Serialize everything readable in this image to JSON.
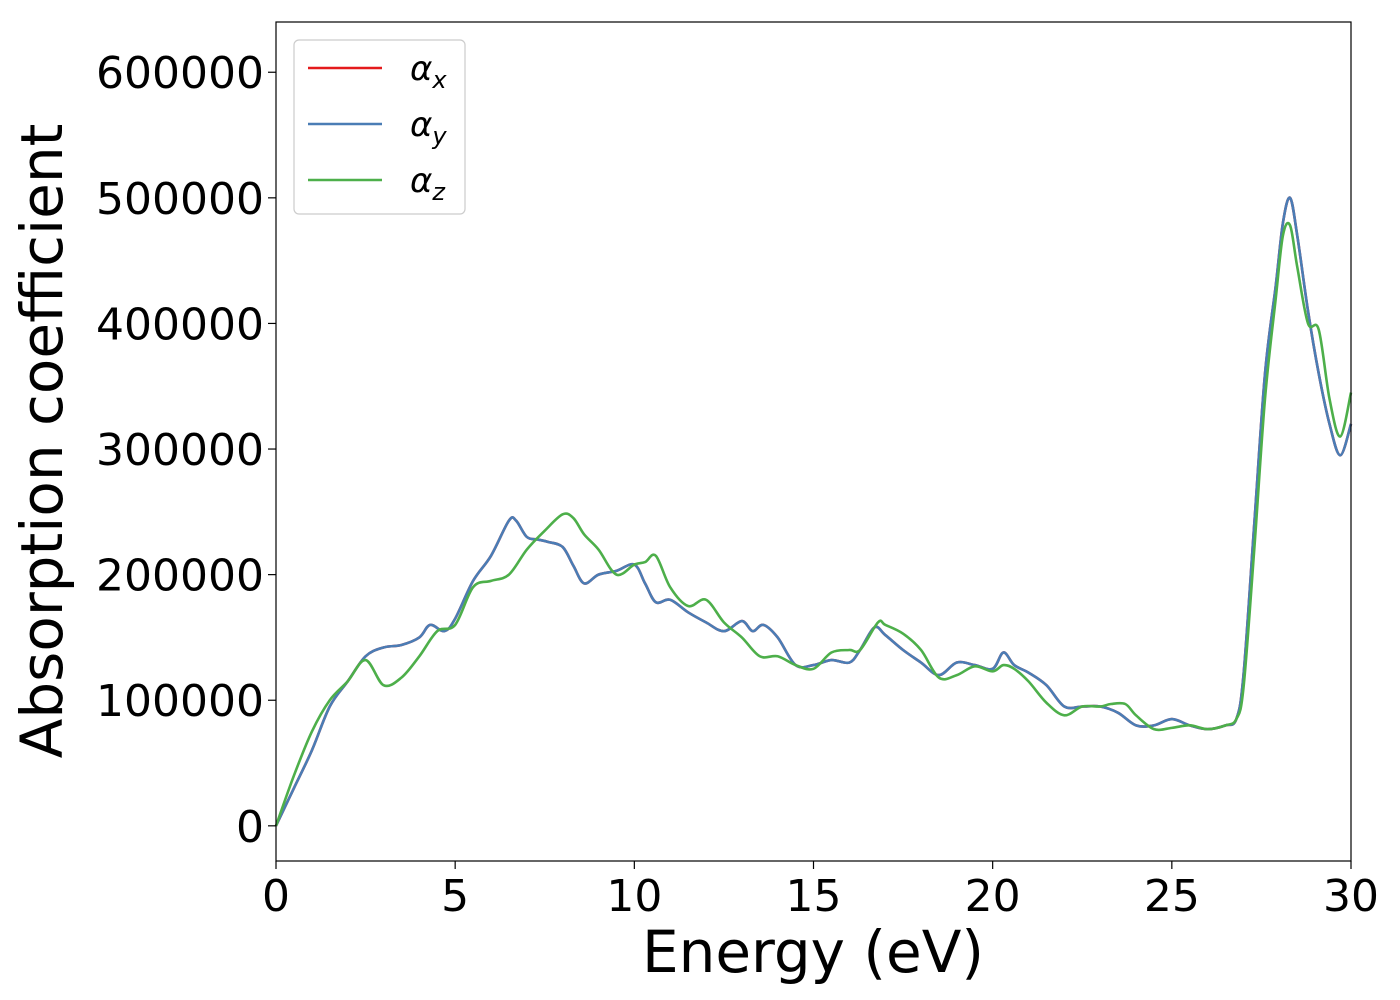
{
  "chart_data": {
    "type": "line",
    "title": "",
    "xlabel": "Energy (eV)",
    "ylabel": "Absorption coefficient",
    "xlim": [
      0,
      30
    ],
    "ylim": [
      -28000,
      640000
    ],
    "x_ticks": [
      0,
      5,
      10,
      15,
      20,
      25,
      30
    ],
    "y_ticks": [
      0,
      100000,
      200000,
      300000,
      400000,
      500000,
      600000
    ],
    "grid": false,
    "legend_position": "top-left",
    "series": [
      {
        "name": "αx",
        "legend_base": "α",
        "legend_sub": "x",
        "color": "#e41a1c",
        "x": [
          0,
          0.5,
          1,
          1.5,
          2,
          2.5,
          3,
          3.5,
          4,
          4.3,
          4.7,
          5,
          5.5,
          6,
          6.5,
          6.7,
          7,
          7.3,
          7.6,
          8,
          8.3,
          8.6,
          9,
          9.5,
          10,
          10.3,
          10.6,
          11,
          11.5,
          12,
          12.5,
          13,
          13.3,
          13.6,
          14,
          14.5,
          15,
          15.5,
          16,
          16.3,
          16.7,
          17,
          17.5,
          18,
          18.5,
          19,
          19.5,
          20,
          20.3,
          20.6,
          21,
          21.5,
          22,
          22.5,
          23,
          23.5,
          24,
          24.5,
          25,
          25.5,
          26,
          26.5,
          26.8,
          27,
          27.3,
          27.6,
          27.9,
          28.1,
          28.3,
          28.5,
          28.8,
          29.1,
          29.4,
          29.7,
          30
        ],
        "y": [
          0,
          30000,
          60000,
          95000,
          115000,
          135000,
          142000,
          144000,
          150000,
          160000,
          155000,
          165000,
          195000,
          215000,
          243000,
          243000,
          230000,
          228000,
          226000,
          222000,
          207000,
          193000,
          200000,
          203000,
          208000,
          193000,
          178000,
          180000,
          170000,
          162000,
          155000,
          163000,
          155000,
          160000,
          150000,
          128000,
          128000,
          132000,
          130000,
          140000,
          158000,
          152000,
          140000,
          130000,
          120000,
          130000,
          128000,
          125000,
          138000,
          128000,
          122000,
          112000,
          95000,
          95000,
          95000,
          90000,
          80000,
          80000,
          85000,
          80000,
          77000,
          80000,
          85000,
          120000,
          240000,
          360000,
          430000,
          480000,
          500000,
          470000,
          410000,
          360000,
          320000,
          295000,
          320000
        ]
      },
      {
        "name": "αy",
        "legend_base": "α",
        "legend_sub": "y",
        "color": "#4a7db5",
        "x": [
          0,
          0.5,
          1,
          1.5,
          2,
          2.5,
          3,
          3.5,
          4,
          4.3,
          4.7,
          5,
          5.5,
          6,
          6.5,
          6.7,
          7,
          7.3,
          7.6,
          8,
          8.3,
          8.6,
          9,
          9.5,
          10,
          10.3,
          10.6,
          11,
          11.5,
          12,
          12.5,
          13,
          13.3,
          13.6,
          14,
          14.5,
          15,
          15.5,
          16,
          16.3,
          16.7,
          17,
          17.5,
          18,
          18.5,
          19,
          19.5,
          20,
          20.3,
          20.6,
          21,
          21.5,
          22,
          22.5,
          23,
          23.5,
          24,
          24.5,
          25,
          25.5,
          26,
          26.5,
          26.8,
          27,
          27.3,
          27.6,
          27.9,
          28.1,
          28.3,
          28.5,
          28.8,
          29.1,
          29.4,
          29.7,
          30
        ],
        "y": [
          0,
          30000,
          60000,
          95000,
          115000,
          135000,
          142000,
          144000,
          150000,
          160000,
          155000,
          165000,
          195000,
          215000,
          243000,
          243000,
          230000,
          228000,
          226000,
          222000,
          207000,
          193000,
          200000,
          203000,
          208000,
          193000,
          178000,
          180000,
          170000,
          162000,
          155000,
          163000,
          155000,
          160000,
          150000,
          128000,
          128000,
          132000,
          130000,
          140000,
          158000,
          152000,
          140000,
          130000,
          120000,
          130000,
          128000,
          125000,
          138000,
          128000,
          122000,
          112000,
          95000,
          95000,
          95000,
          90000,
          80000,
          80000,
          85000,
          80000,
          77000,
          80000,
          85000,
          120000,
          240000,
          360000,
          430000,
          480000,
          500000,
          470000,
          410000,
          360000,
          320000,
          295000,
          320000
        ]
      },
      {
        "name": "αz",
        "legend_base": "α",
        "legend_sub": "z",
        "color": "#4daf4a",
        "x": [
          0,
          0.5,
          1,
          1.5,
          2,
          2.5,
          3,
          3.5,
          4,
          4.5,
          5,
          5.5,
          6,
          6.5,
          7,
          7.5,
          8,
          8.3,
          8.6,
          9,
          9.5,
          10,
          10.3,
          10.6,
          11,
          11.5,
          12,
          12.5,
          13,
          13.5,
          14,
          14.5,
          15,
          15.5,
          16,
          16.3,
          16.8,
          17,
          17.5,
          18,
          18.5,
          19,
          19.5,
          20,
          20.3,
          20.6,
          21,
          21.5,
          22,
          22.5,
          23,
          23.3,
          23.7,
          24,
          24.5,
          25,
          25.5,
          26,
          26.5,
          26.8,
          27,
          27.3,
          27.6,
          27.9,
          28.1,
          28.3,
          28.5,
          28.8,
          29.1,
          29.4,
          29.7,
          30
        ],
        "y": [
          0,
          40000,
          75000,
          100000,
          115000,
          132000,
          112000,
          118000,
          135000,
          155000,
          160000,
          190000,
          195000,
          200000,
          220000,
          235000,
          248000,
          245000,
          232000,
          220000,
          200000,
          208000,
          210000,
          215000,
          190000,
          175000,
          180000,
          162000,
          150000,
          135000,
          135000,
          128000,
          125000,
          138000,
          140000,
          140000,
          162000,
          160000,
          153000,
          140000,
          118000,
          120000,
          127000,
          123000,
          128000,
          125000,
          115000,
          98000,
          88000,
          95000,
          95000,
          97000,
          97000,
          88000,
          77000,
          78000,
          80000,
          77000,
          80000,
          85000,
          110000,
          220000,
          340000,
          420000,
          470000,
          478000,
          445000,
          400000,
          395000,
          340000,
          310000,
          345000
        ]
      }
    ]
  }
}
